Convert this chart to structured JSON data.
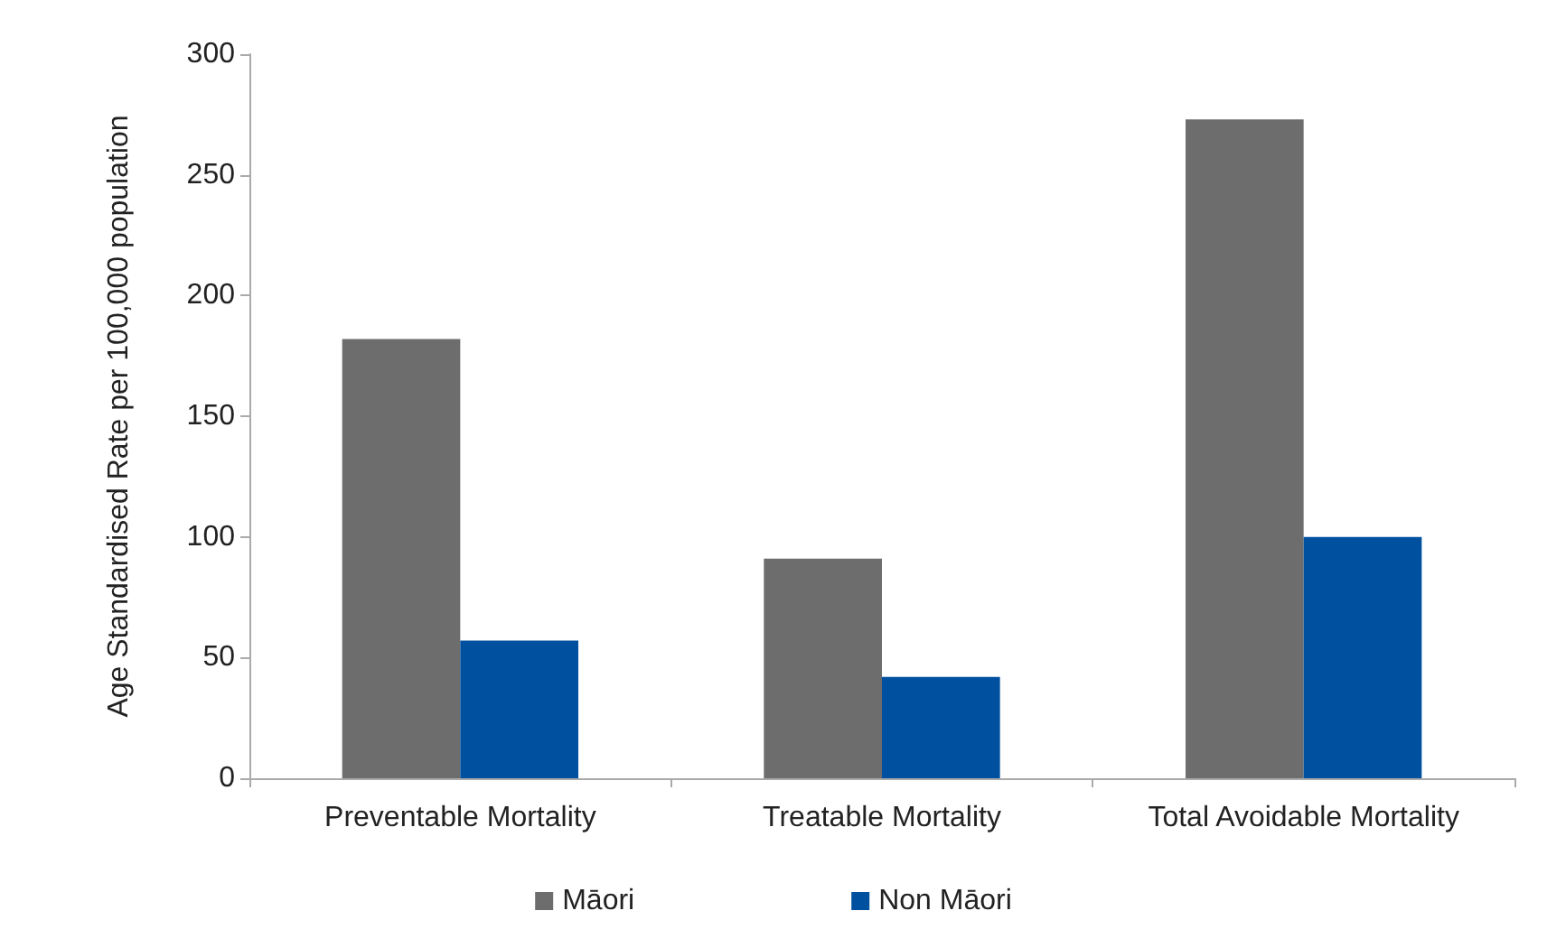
{
  "chart_data": {
    "type": "bar",
    "ylabel": "Age Standardised Rate per 100,000 population",
    "categories": [
      "Preventable Mortality",
      "Treatable Mortality",
      "Total Avoidable Mortality"
    ],
    "series": [
      {
        "name": "Māori",
        "color": "#6d6d6d",
        "values": [
          182,
          91,
          273
        ]
      },
      {
        "name": "Non Māori",
        "color": "#0050a0",
        "values": [
          57,
          42,
          100
        ]
      }
    ],
    "ylim": [
      0,
      300
    ],
    "yticks": [
      0,
      50,
      100,
      150,
      200,
      250,
      300
    ],
    "grid": false,
    "legend": "bottom"
  }
}
